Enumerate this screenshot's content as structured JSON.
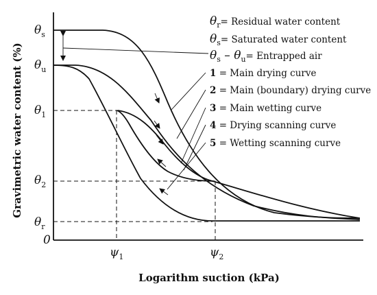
{
  "axes": {
    "y_label": "Gravimetric water content (%)",
    "x_label": "Logarithm suction (kPa)",
    "origin": "0",
    "y_ticks": [
      {
        "sym": "θ",
        "sub": "s"
      },
      {
        "sym": "θ",
        "sub": "u"
      },
      {
        "sym": "θ",
        "sub": "1"
      },
      {
        "sym": "θ",
        "sub": "2"
      },
      {
        "sym": "θ",
        "sub": "r"
      }
    ],
    "x_ticks": [
      {
        "sym": "ψ",
        "sub": "1"
      },
      {
        "sym": "ψ",
        "sub": "2"
      }
    ]
  },
  "definitions": [
    {
      "lhs": "θ",
      "lhs_sub": "r",
      "mid": "",
      "mid_sub": "",
      "text": "= Residual water content"
    },
    {
      "lhs": "θ",
      "lhs_sub": "s",
      "mid": "",
      "mid_sub": "",
      "text": "= Saturated water content"
    },
    {
      "lhs": "θ",
      "lhs_sub": "s",
      "mid": " – θ",
      "mid_sub": "u",
      "text": "= Entrapped air"
    }
  ],
  "curves": [
    {
      "num": "1",
      "text": " = Main drying curve"
    },
    {
      "num": "2",
      "text": " = Main (boundary) drying curve"
    },
    {
      "num": "3",
      "text": " = Main wetting curve"
    },
    {
      "num": "4",
      "text": " = Drying scanning curve"
    },
    {
      "num": "5",
      "text": " = Wetting scanning curve"
    }
  ]
}
